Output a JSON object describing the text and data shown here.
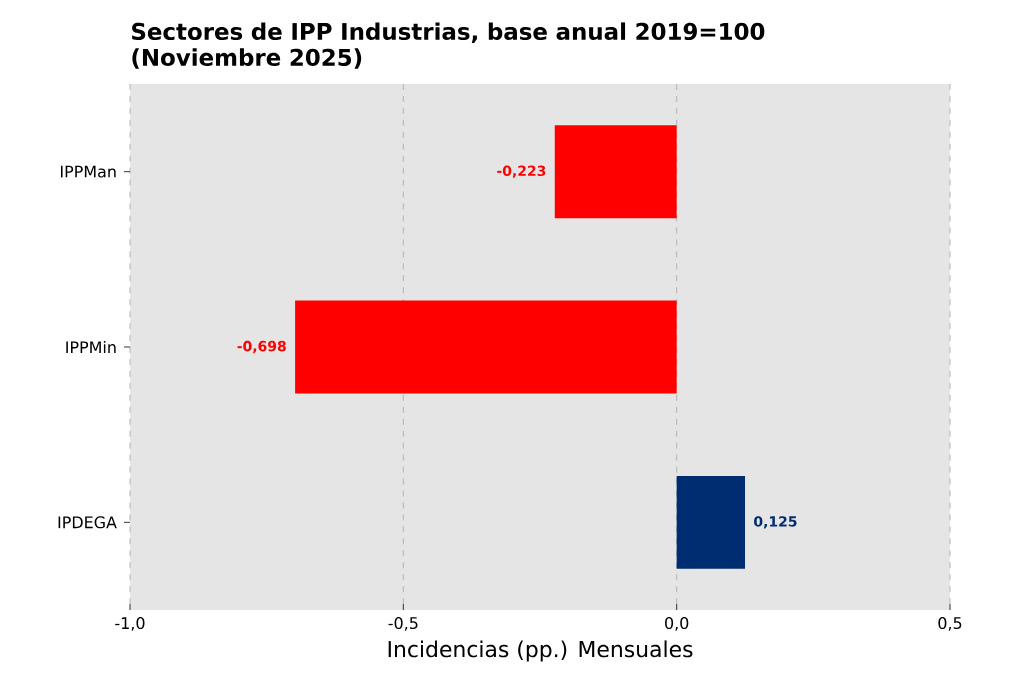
{
  "chart_data": {
    "type": "bar",
    "orientation": "horizontal",
    "title": "Sectores de IPP Industrias, base anual 2019=100 (Noviembre 2025)",
    "xlabel": "Incidencias (pp.) Mensuales",
    "categories": [
      "IPPMan",
      "IPPMin",
      "IPDEGA"
    ],
    "values": [
      -0.223,
      -0.698,
      0.125
    ],
    "colors": [
      "#ff0000",
      "#ff0000",
      "#002d72"
    ],
    "value_labels": [
      "-0,223",
      "-0,698",
      "0,125"
    ],
    "xlim": [
      -1,
      0.5
    ],
    "xticks": [
      {
        "value": -1,
        "label": "-1,0"
      },
      {
        "value": -0.5,
        "label": "-0,5"
      },
      {
        "value": 0,
        "label": "0,0"
      },
      {
        "value": 0.5,
        "label": "0,5"
      }
    ],
    "grid": "x"
  }
}
